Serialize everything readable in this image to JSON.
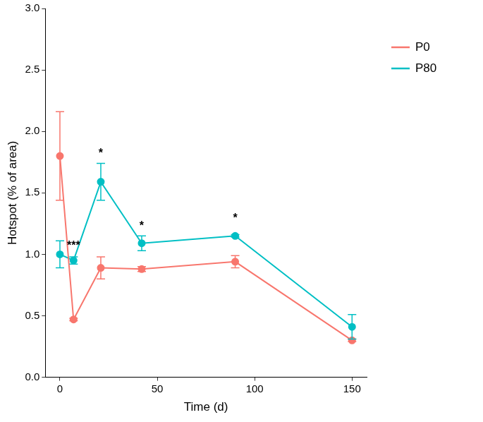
{
  "chart_data": {
    "type": "line",
    "x_label": "Time (d)",
    "y_label": "Hotspot (% of area)",
    "x": [
      0,
      7,
      21,
      42,
      90,
      150
    ],
    "series": [
      {
        "name": "P0",
        "color": "#F8766D",
        "marker": "circle",
        "values": [
          1.8,
          0.47,
          0.89,
          0.88,
          0.94,
          0.3
        ],
        "errors": [
          0.36,
          0.01,
          0.09,
          0.02,
          0.05,
          0.01
        ]
      },
      {
        "name": "P80",
        "color": "#00BFC4",
        "marker": "circle",
        "values": [
          1.0,
          0.95,
          1.59,
          1.09,
          1.15,
          0.41
        ],
        "errors": [
          0.11,
          0.03,
          0.15,
          0.06,
          0.01,
          0.1
        ]
      }
    ],
    "annotations": [
      {
        "text": "***",
        "x": 7,
        "y": 1.07
      },
      {
        "text": "*",
        "x": 21,
        "y": 1.82
      },
      {
        "text": "*",
        "x": 42,
        "y": 1.23
      },
      {
        "text": "*",
        "x": 90,
        "y": 1.29
      }
    ],
    "xlim": [
      -7.5,
      157.5
    ],
    "xticks": [
      0,
      50,
      100,
      150
    ],
    "ylim": [
      0,
      3
    ],
    "yticks": [
      {
        "value": 0,
        "label": "0.0"
      },
      0.5,
      {
        "value": 1,
        "label": "1.0"
      },
      1.5,
      {
        "value": 2,
        "label": "2.0"
      },
      2.5,
      {
        "value": 3,
        "label": "3.0"
      }
    ],
    "grid": false,
    "legend": "top-right"
  }
}
